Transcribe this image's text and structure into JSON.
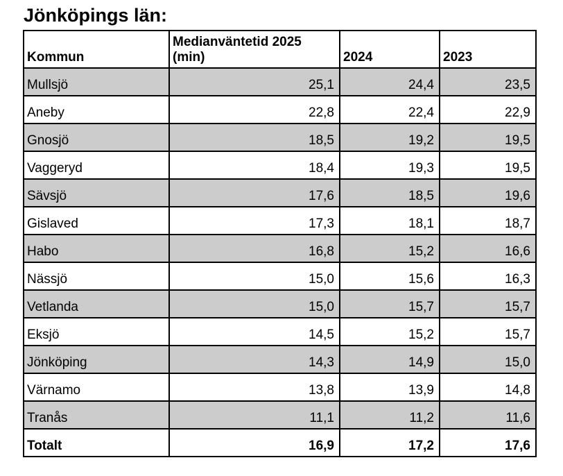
{
  "title": "Jönköpings län:",
  "table": {
    "columns": [
      {
        "label": "Kommun"
      },
      {
        "label": "Medianväntetid 2025 (min)"
      },
      {
        "label": "2024"
      },
      {
        "label": "2023"
      }
    ],
    "rows": [
      {
        "kommun": "Mullsjö",
        "v2025": "25,1",
        "v2024": "24,4",
        "v2023": "23,5"
      },
      {
        "kommun": "Aneby",
        "v2025": "22,8",
        "v2024": "22,4",
        "v2023": "22,9"
      },
      {
        "kommun": "Gnosjö",
        "v2025": "18,5",
        "v2024": "19,2",
        "v2023": "19,5"
      },
      {
        "kommun": "Vaggeryd",
        "v2025": "18,4",
        "v2024": "19,3",
        "v2023": "19,5"
      },
      {
        "kommun": "Sävsjö",
        "v2025": "17,6",
        "v2024": "18,5",
        "v2023": "19,6"
      },
      {
        "kommun": "Gislaved",
        "v2025": "17,3",
        "v2024": "18,1",
        "v2023": "18,7"
      },
      {
        "kommun": "Habo",
        "v2025": "16,8",
        "v2024": "15,2",
        "v2023": "16,6"
      },
      {
        "kommun": "Nässjö",
        "v2025": "15,0",
        "v2024": "15,6",
        "v2023": "16,3"
      },
      {
        "kommun": "Vetlanda",
        "v2025": "15,0",
        "v2024": "15,7",
        "v2023": "15,7"
      },
      {
        "kommun": "Eksjö",
        "v2025": "14,5",
        "v2024": "15,2",
        "v2023": "15,7"
      },
      {
        "kommun": "Jönköping",
        "v2025": "14,3",
        "v2024": "14,9",
        "v2023": "15,0"
      },
      {
        "kommun": "Värnamo",
        "v2025": "13,8",
        "v2024": "13,9",
        "v2023": "14,8"
      },
      {
        "kommun": "Tranås",
        "v2025": "11,1",
        "v2024": "11,2",
        "v2023": "11,6"
      }
    ],
    "total": {
      "kommun": "Totalt",
      "v2025": "16,9",
      "v2024": "17,2",
      "v2023": "17,6"
    },
    "colors": {
      "row_shade": "#cccccc",
      "border": "#000000",
      "background": "#ffffff",
      "text": "#000000"
    }
  }
}
